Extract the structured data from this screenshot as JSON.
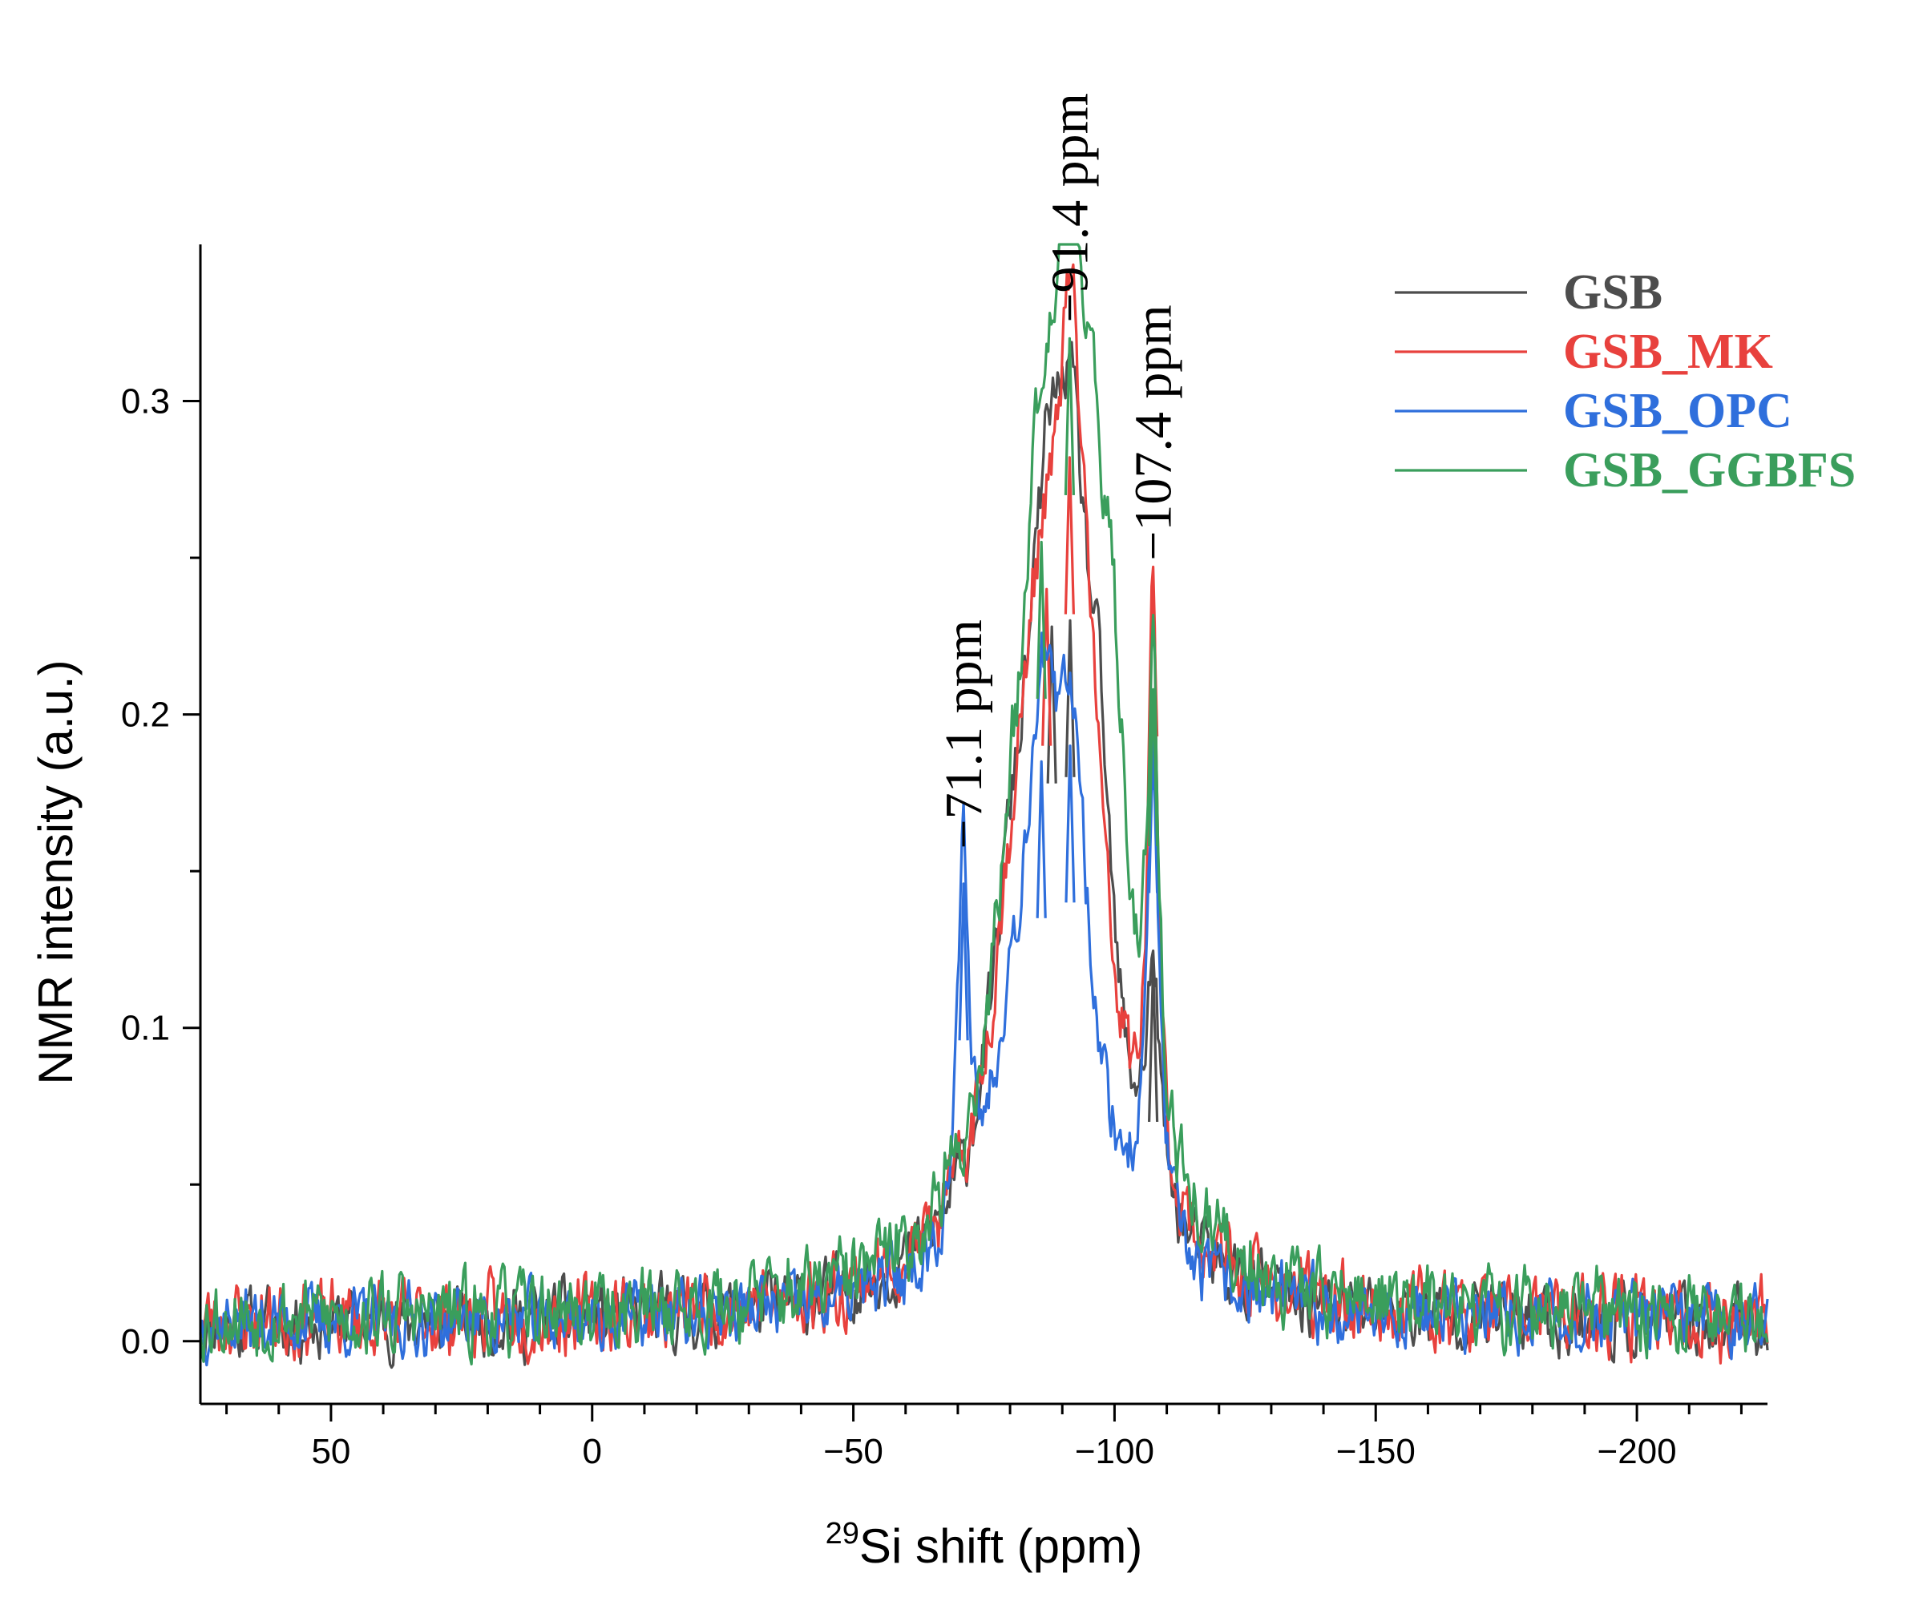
{
  "chart_data": {
    "type": "line",
    "title": "",
    "xlabel": {
      "superscript": "29",
      "text": "Si shift (ppm)"
    },
    "ylabel": "NMR intensity (a.u.)",
    "xlim": [
      75,
      -225
    ],
    "ylim": [
      -0.02,
      0.35
    ],
    "x_ticks": [
      50,
      0,
      -50,
      -100,
      -150,
      -200
    ],
    "x_tick_labels": [
      "50",
      "0",
      "−50",
      "−100",
      "−150",
      "−200"
    ],
    "y_ticks": [
      0.0,
      0.1,
      0.2,
      0.3
    ],
    "y_tick_labels": [
      "0.0",
      "0.1",
      "0.2",
      "0.3"
    ],
    "grid": false,
    "legend_position": "top-right",
    "series": [
      {
        "name": "GSB",
        "color": "#4d4d4d",
        "noise": 0.01,
        "baseline": 0.005,
        "seed": 11,
        "peaks": [
          {
            "x": -87.0,
            "height": 0.155,
            "width": 5.0
          },
          {
            "x": -92.0,
            "height": 0.145,
            "width": 4.0
          },
          {
            "x": -80.0,
            "height": 0.06,
            "width": 4.5
          },
          {
            "x": -97.0,
            "height": 0.08,
            "width": 3.0
          },
          {
            "x": -107.4,
            "height": 0.07,
            "width": 1.6
          },
          {
            "x": -89.0,
            "height": 0.05,
            "width": 15.0
          }
        ],
        "points": [
          {
            "x": -88.0,
            "y": 0.228
          },
          {
            "x": -91.5,
            "y": 0.23
          },
          {
            "x": -107.4,
            "y": 0.12
          }
        ]
      },
      {
        "name": "GSB_MK",
        "color": "#e8413d",
        "noise": 0.011,
        "baseline": 0.006,
        "seed": 23,
        "peaks": [
          {
            "x": -91.4,
            "height": 0.155,
            "width": 2.8
          },
          {
            "x": -86.0,
            "height": 0.14,
            "width": 5.0
          },
          {
            "x": -95.0,
            "height": 0.1,
            "width": 4.0
          },
          {
            "x": -80.0,
            "height": 0.05,
            "width": 5.0
          },
          {
            "x": -107.4,
            "height": 0.185,
            "width": 1.2
          },
          {
            "x": -90.0,
            "height": 0.05,
            "width": 16.0
          }
        ],
        "points": [
          {
            "x": -91.4,
            "y": 0.282
          },
          {
            "x": -87.0,
            "y": 0.24
          },
          {
            "x": -107.4,
            "y": 0.243
          }
        ]
      },
      {
        "name": "GSB_OPC",
        "color": "#2f6fdc",
        "noise": 0.01,
        "baseline": 0.006,
        "seed": 37,
        "peaks": [
          {
            "x": -71.1,
            "height": 0.12,
            "width": 1.3
          },
          {
            "x": -86.0,
            "height": 0.12,
            "width": 3.5
          },
          {
            "x": -92.0,
            "height": 0.12,
            "width": 3.5
          },
          {
            "x": -80.0,
            "height": 0.04,
            "width": 4.0
          },
          {
            "x": -107.4,
            "height": 0.15,
            "width": 1.4
          },
          {
            "x": -89.0,
            "height": 0.05,
            "width": 14.0
          }
        ],
        "points": [
          {
            "x": -71.1,
            "y": 0.146
          },
          {
            "x": -86.0,
            "y": 0.185
          },
          {
            "x": -91.5,
            "y": 0.19
          },
          {
            "x": -107.4,
            "y": 0.193
          }
        ]
      },
      {
        "name": "GSB_GGBFS",
        "color": "#3a9e5c",
        "noise": 0.012,
        "baseline": 0.007,
        "seed": 53,
        "peaks": [
          {
            "x": -91.4,
            "height": 0.19,
            "width": 2.8
          },
          {
            "x": -86.0,
            "height": 0.17,
            "width": 4.5
          },
          {
            "x": -96.0,
            "height": 0.13,
            "width": 4.0
          },
          {
            "x": -100.0,
            "height": 0.08,
            "width": 3.0
          },
          {
            "x": -80.0,
            "height": 0.05,
            "width": 5.0
          },
          {
            "x": -107.4,
            "height": 0.15,
            "width": 1.3
          },
          {
            "x": -90.0,
            "height": 0.06,
            "width": 16.0
          }
        ],
        "points": [
          {
            "x": -91.4,
            "y": 0.32
          },
          {
            "x": -86.0,
            "y": 0.255
          },
          {
            "x": -107.4,
            "y": 0.208
          }
        ]
      }
    ],
    "annotations": [
      {
        "text": "−71.1 ppm",
        "x": -71.1,
        "y": 0.155
      },
      {
        "text": "−91.4 ppm",
        "x": -91.4,
        "y": 0.323
      },
      {
        "text": "−107.4 ppm",
        "x": -107.4,
        "y": 0.247
      }
    ]
  }
}
